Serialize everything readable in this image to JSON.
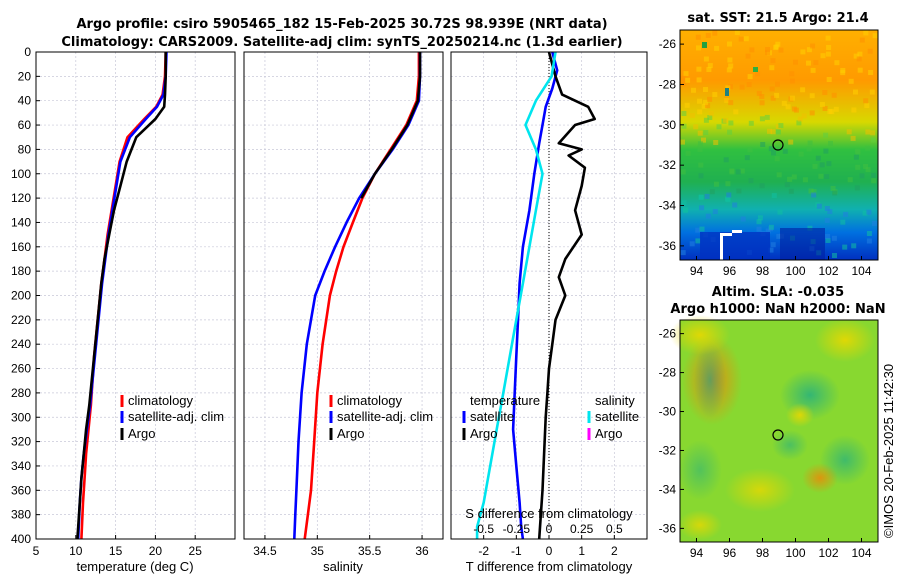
{
  "title": {
    "line1": "Argo profile: csiro 5905465_182 15-Feb-2025 30.72S 98.939E (NRT data)",
    "line2": "Climatology: CARS2009. Satellite-adj clim: synTS_20250214.nc (1.3d earlier)"
  },
  "colors": {
    "climatology": "#ff0000",
    "satellite": "#0000ff",
    "argo": "#000000",
    "salinity_sat": "#00e5ee",
    "salinity_argo": "#ff00ff"
  },
  "depth_ticks": [
    "0",
    "20",
    "40",
    "60",
    "80",
    "100",
    "120",
    "140",
    "160",
    "180",
    "200",
    "220",
    "240",
    "260",
    "280",
    "300",
    "320",
    "340",
    "360",
    "380",
    "400"
  ],
  "chart_data": [
    {
      "type": "line",
      "xlabel": "temperature (deg C)",
      "ylabel": "",
      "xlim": [
        5,
        30
      ],
      "ylim": [
        400,
        0
      ],
      "xticks": [
        "5",
        "10",
        "15",
        "20",
        "25"
      ],
      "legend": [
        "climatology",
        "satellite-adj. clim",
        "Argo"
      ],
      "series": [
        {
          "name": "climatology",
          "color": "#ff0000",
          "x": [
            21.3,
            21.2,
            20.9,
            20.1,
            18.6,
            16.5,
            15.5,
            15.0,
            14.5,
            14.0,
            13.6,
            13.2,
            12.9,
            12.6,
            12.3,
            12.1,
            11.9,
            11.6,
            11.3,
            11.1,
            10.9,
            10.7
          ],
          "y": [
            0,
            20,
            35,
            45,
            55,
            70,
            90,
            110,
            130,
            150,
            170,
            190,
            210,
            230,
            250,
            270,
            290,
            310,
            330,
            350,
            370,
            400
          ]
        },
        {
          "name": "satellite-adj. clim",
          "color": "#0000ff",
          "x": [
            21.4,
            21.3,
            21.0,
            20.2,
            18.8,
            16.8,
            15.6,
            15.1,
            14.6,
            14.1,
            13.7,
            13.3,
            13.0,
            12.7,
            12.4,
            12.1,
            11.8,
            11.4,
            11.0,
            10.7,
            10.5,
            10.3
          ],
          "y": [
            0,
            20,
            35,
            45,
            55,
            70,
            90,
            110,
            130,
            150,
            170,
            190,
            210,
            230,
            250,
            270,
            290,
            310,
            330,
            350,
            370,
            400
          ]
        },
        {
          "name": "Argo",
          "color": "#000000",
          "x": [
            21.3,
            21.3,
            21.2,
            21.1,
            20.0,
            17.6,
            16.4,
            15.6,
            14.8,
            14.2,
            13.6,
            13.2,
            12.9,
            12.6,
            12.3,
            12.0,
            11.7,
            11.3,
            11.0,
            10.7,
            10.5,
            10.2
          ],
          "y": [
            0,
            20,
            35,
            45,
            55,
            70,
            90,
            110,
            130,
            150,
            170,
            190,
            210,
            230,
            250,
            270,
            290,
            310,
            330,
            350,
            370,
            400
          ]
        }
      ]
    },
    {
      "type": "line",
      "xlabel": "salinity",
      "ylabel": "",
      "xlim": [
        34.3,
        36.2
      ],
      "ylim": [
        400,
        0
      ],
      "xticks": [
        "34.5",
        "35",
        "35.5",
        "36"
      ],
      "legend": [
        "climatology",
        "satellite-adj. clim",
        "Argo"
      ],
      "series": [
        {
          "name": "climatology",
          "color": "#ff0000",
          "x": [
            35.97,
            35.97,
            35.95,
            35.85,
            35.7,
            35.55,
            35.43,
            35.34,
            35.25,
            35.18,
            35.12,
            35.05,
            35.0,
            34.97,
            34.94,
            34.91,
            34.88
          ],
          "y": [
            0,
            20,
            40,
            60,
            80,
            100,
            120,
            140,
            160,
            180,
            200,
            240,
            280,
            320,
            360,
            380,
            400
          ]
        },
        {
          "name": "satellite-adj. clim",
          "color": "#0000ff",
          "x": [
            35.98,
            35.98,
            35.97,
            35.87,
            35.72,
            35.55,
            35.4,
            35.28,
            35.17,
            35.07,
            34.98,
            34.9,
            34.85,
            34.82,
            34.8,
            34.79,
            34.78
          ],
          "y": [
            0,
            20,
            40,
            60,
            80,
            100,
            120,
            140,
            160,
            180,
            200,
            240,
            280,
            320,
            360,
            380,
            400
          ]
        },
        {
          "name": "Argo",
          "color": "#000000",
          "x": [
            35.98,
            35.98,
            35.96,
            35.86,
            35.71,
            35.55,
            35.42
          ],
          "y": [
            0,
            20,
            40,
            60,
            80,
            100,
            120
          ]
        }
      ]
    },
    {
      "type": "line",
      "xlabel": "T difference from climatology",
      "xlabel_top": "S difference from climatology",
      "ylabel": "",
      "xlim": [
        -3,
        3
      ],
      "ylim": [
        400,
        0
      ],
      "xticks": [
        "-2",
        "-1",
        "0",
        "1",
        "2"
      ],
      "xticks_top": [
        "-0.5",
        "-0.25",
        "0",
        "0.25",
        "0.5"
      ],
      "legend_temperature_header": "temperature",
      "legend_salinity_header": "salinity",
      "legend": [
        "satellite",
        "Argo",
        "satellite",
        "Argo"
      ],
      "series": [
        {
          "name": "temperature satellite",
          "color": "#0000ff",
          "x": [
            0.1,
            0.25,
            0.1,
            -0.1,
            -0.2,
            -0.3,
            -0.45,
            -0.6,
            -0.8,
            -0.9,
            -0.95,
            -1.0,
            -1.05,
            -1.1,
            -1.0,
            -0.9,
            -0.85,
            -0.8
          ],
          "y": [
            0,
            15,
            30,
            45,
            60,
            75,
            100,
            130,
            160,
            190,
            220,
            250,
            280,
            310,
            340,
            370,
            390,
            400
          ]
        },
        {
          "name": "temperature Argo",
          "color": "#000000",
          "x": [
            0,
            0.2,
            0.4,
            1.2,
            1.4,
            0.8,
            0.3,
            1.0,
            0.6,
            1.1,
            1.0,
            0.8,
            1.0,
            0.5,
            0.3,
            0.5,
            0.2,
            0.1,
            0.0,
            -0.05,
            -0.1,
            -0.15,
            -0.2,
            -0.3
          ],
          "y": [
            0,
            20,
            35,
            45,
            55,
            60,
            75,
            80,
            85,
            95,
            110,
            130,
            150,
            170,
            185,
            200,
            220,
            240,
            260,
            280,
            300,
            330,
            360,
            400
          ]
        },
        {
          "name": "salinity satellite",
          "color": "#00e5ee",
          "x": [
            0.05,
            0.02,
            -0.1,
            -0.18,
            -0.1,
            -0.05,
            -0.1,
            -0.15,
            -0.2,
            -0.25,
            -0.3,
            -0.35,
            -0.4,
            -0.45,
            -0.5,
            -0.55,
            -0.55
          ],
          "y": [
            0,
            20,
            40,
            60,
            80,
            100,
            130,
            160,
            190,
            220,
            250,
            280,
            310,
            340,
            370,
            390,
            400
          ]
        },
        {
          "name": "salinity Argo",
          "color": "#ff00ff",
          "x": [],
          "y": []
        }
      ]
    },
    {
      "type": "heatmap",
      "title": "sat. SST: 21.5 Argo: 21.4",
      "xticks": [
        "94",
        "96",
        "98",
        "100",
        "102",
        "104"
      ],
      "yticks": [
        "-26",
        "-28",
        "-30",
        "-32",
        "-34",
        "-36"
      ],
      "xlim": [
        93,
        105
      ],
      "ylim": [
        -36.7,
        -25.3
      ],
      "marker": {
        "lon": 98.939,
        "lat": -30.72
      }
    },
    {
      "type": "heatmap",
      "title_line1": "Altim. SLA: -0.035",
      "title_line2": "Argo h1000: NaN h2000: NaN",
      "xticks": [
        "94",
        "96",
        "98",
        "100",
        "102",
        "104"
      ],
      "yticks": [
        "-26",
        "-28",
        "-30",
        "-32",
        "-34",
        "-36"
      ],
      "xlim": [
        93,
        105
      ],
      "ylim": [
        -36.7,
        -25.3
      ],
      "marker": {
        "lon": 98.939,
        "lat": -30.72
      }
    }
  ],
  "watermark": "©IMOS 20-Feb-2025 11:42:30"
}
